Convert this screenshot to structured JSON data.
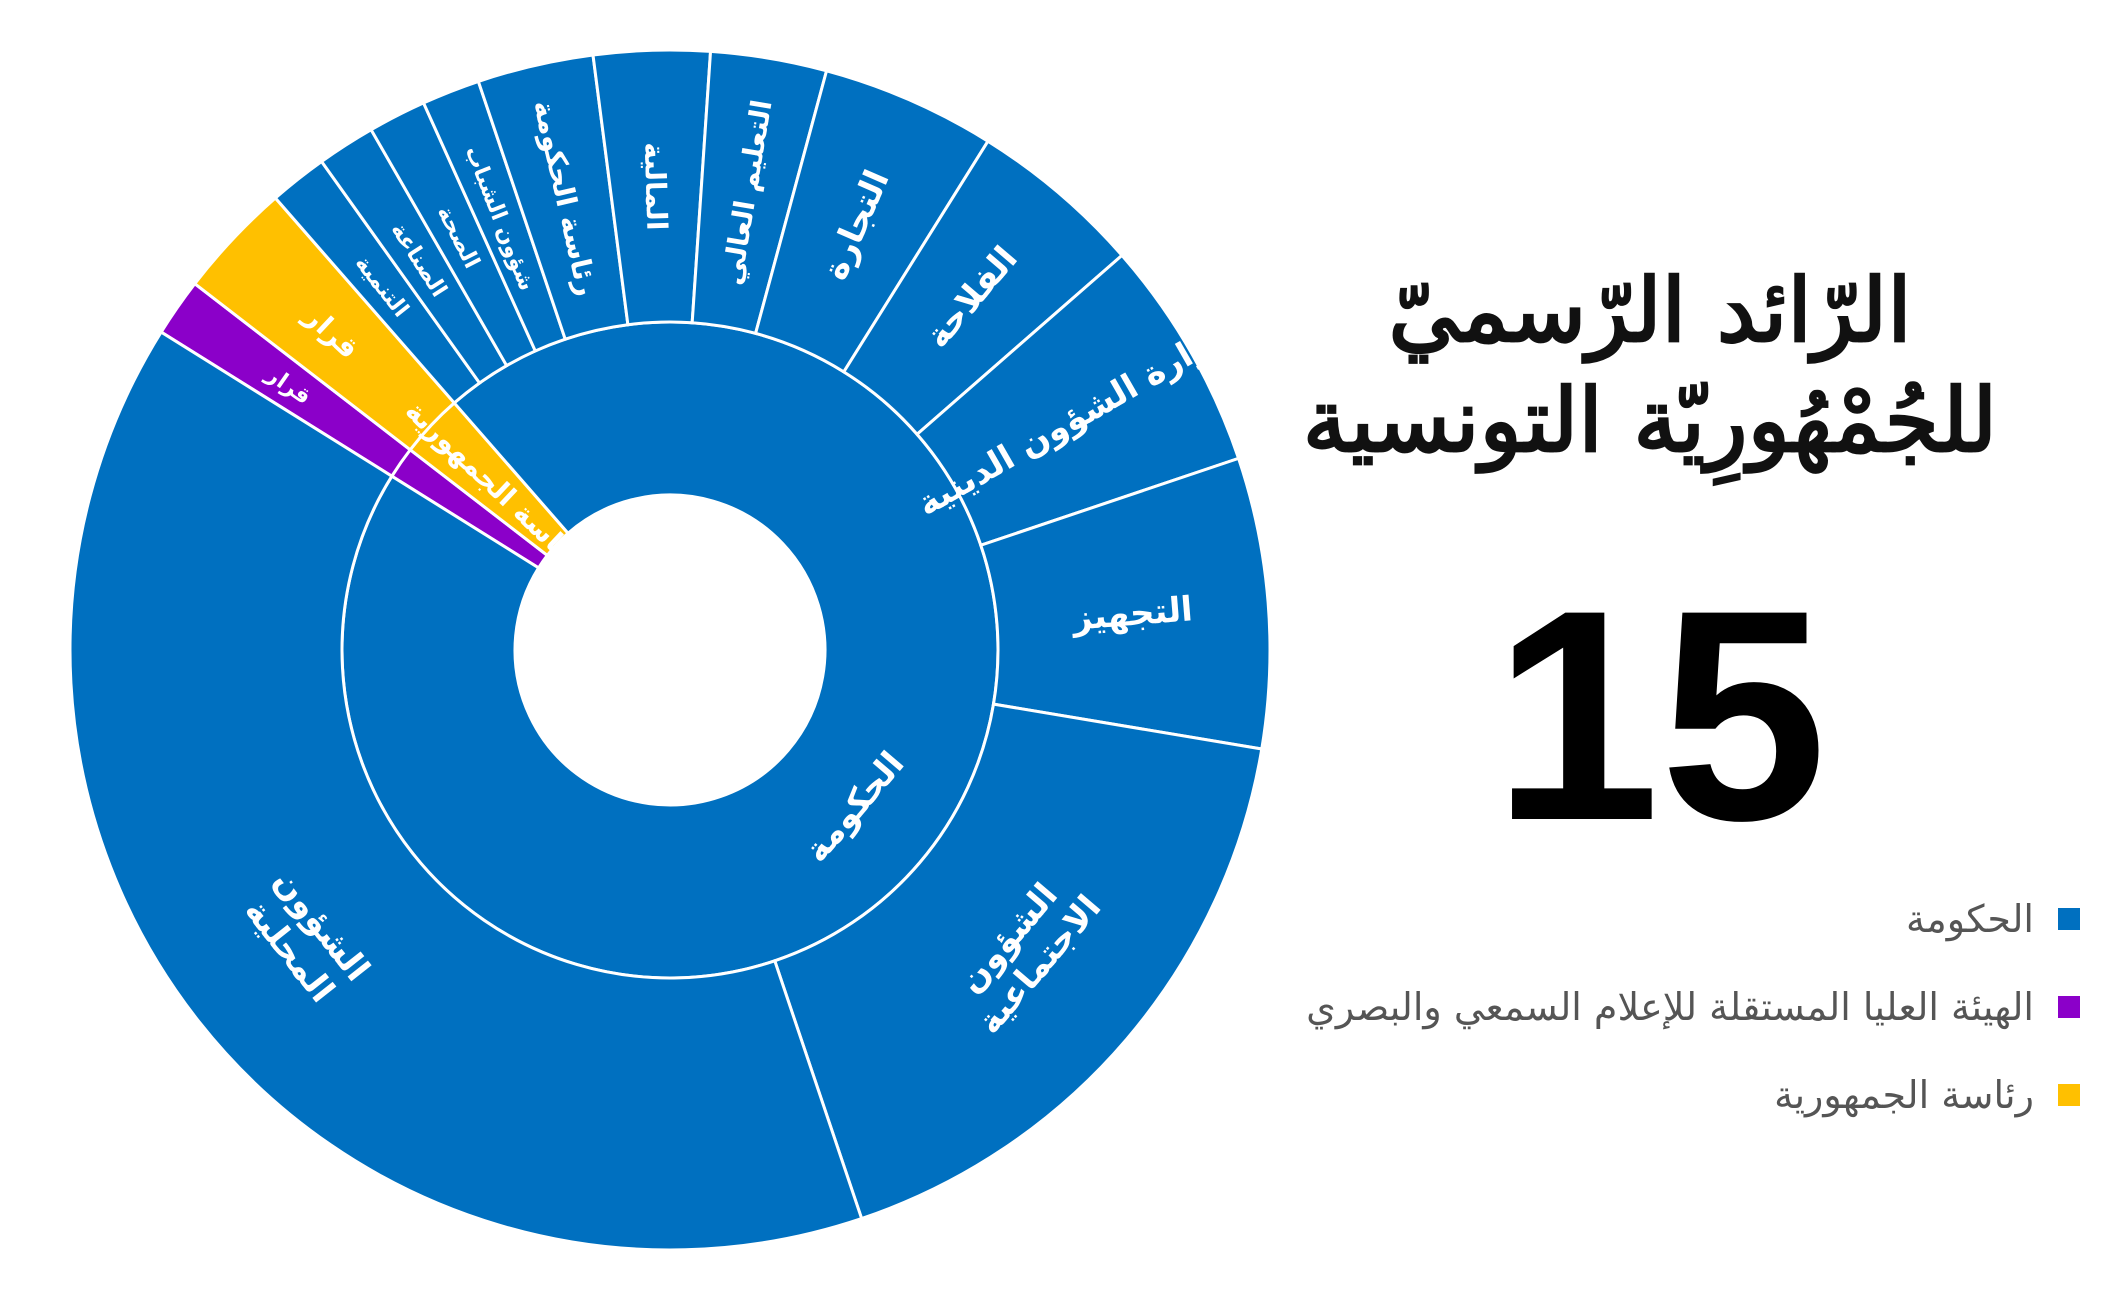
{
  "chart_data": {
    "type": "sunburst",
    "title": "الرّائد الرّسميّ للجُمْهُورِيّة التونسية",
    "issue_number": "15",
    "total": 64,
    "legend_position": "right",
    "colors": {
      "government": "#0070C0",
      "haica": "#8B00C9",
      "presidency": "#FFC000",
      "border": "#ffffff",
      "label": "#ffffff"
    },
    "rings": [
      {
        "ring": "inner",
        "segments": [
          {
            "label": "",
            "value": 1,
            "group": "haica"
          },
          {
            "label": "رئاسة الجمهورية",
            "value": 2,
            "group": "presidency"
          },
          {
            "label": "الحكومة",
            "value": 61,
            "group": "government"
          }
        ]
      },
      {
        "ring": "outer",
        "segments": [
          {
            "label": "قرار",
            "value": 1,
            "group": "haica"
          },
          {
            "label": "قرار",
            "value": 2,
            "group": "presidency"
          },
          {
            "label": "التنمية",
            "value": 1,
            "group": "government"
          },
          {
            "label": "الصناعة",
            "value": 1,
            "group": "government"
          },
          {
            "label": "الصحة",
            "value": 1,
            "group": "government"
          },
          {
            "label": "شؤون الشباب",
            "value": 1,
            "group": "government"
          },
          {
            "label": "رئاسة الحكومة",
            "value": 2,
            "group": "government"
          },
          {
            "label": "المالية",
            "value": 2,
            "group": "government"
          },
          {
            "label": "التعليم العالي",
            "value": 2,
            "group": "government"
          },
          {
            "label": "التجارة",
            "value": 3,
            "group": "government"
          },
          {
            "label": "الفلاحة",
            "value": 3,
            "group": "government"
          },
          {
            "label": "وزارة الشؤون الدينية",
            "value": 4,
            "group": "government"
          },
          {
            "label": "التجهيز",
            "value": 5,
            "group": "government"
          },
          {
            "label": "الشؤون الاجتماعية",
            "value": 11,
            "group": "government"
          },
          {
            "label": "الشؤون المحلية",
            "value": 25,
            "group": "government"
          }
        ]
      }
    ],
    "legend": [
      {
        "label": "الحكومة",
        "group": "government"
      },
      {
        "label": "الهيئة العليا المستقلة للإعلام السمعي والبصري",
        "group": "haica"
      },
      {
        "label": "رئاسة الجمهورية",
        "group": "presidency"
      }
    ]
  },
  "title_lines": [
    "الرّائد الرّسميّ",
    "للجُمْهُورِيّة التونسية"
  ]
}
